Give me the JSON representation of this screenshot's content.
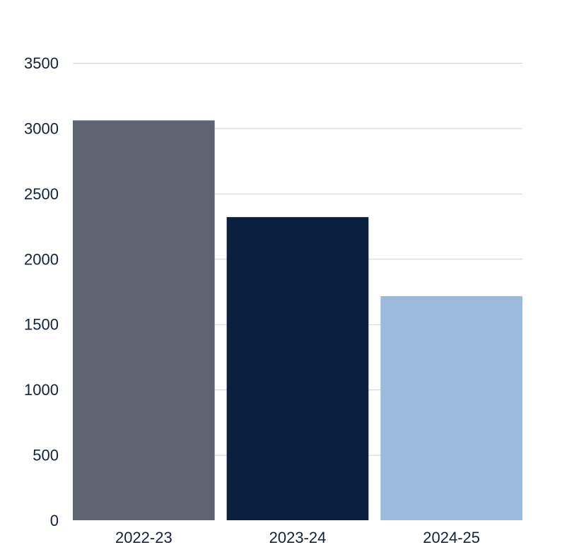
{
  "chart_data": {
    "type": "bar",
    "categories": [
      "2022-23",
      "2023-24",
      "2024-25"
    ],
    "values": [
      3060,
      2320,
      1715
    ],
    "colors": [
      "#5d6472",
      "#0b1f3f",
      "#9bbadc"
    ],
    "title": "",
    "xlabel": "",
    "ylabel": "",
    "ylim": [
      0,
      3500
    ],
    "yticks": [
      0,
      500,
      1000,
      1500,
      2000,
      2500,
      3000,
      3500
    ],
    "ytick_labels": [
      "0",
      "500",
      "1000",
      "1500",
      "2000",
      "2500",
      "3000",
      "3500"
    ],
    "grid": true,
    "legend": "none"
  }
}
